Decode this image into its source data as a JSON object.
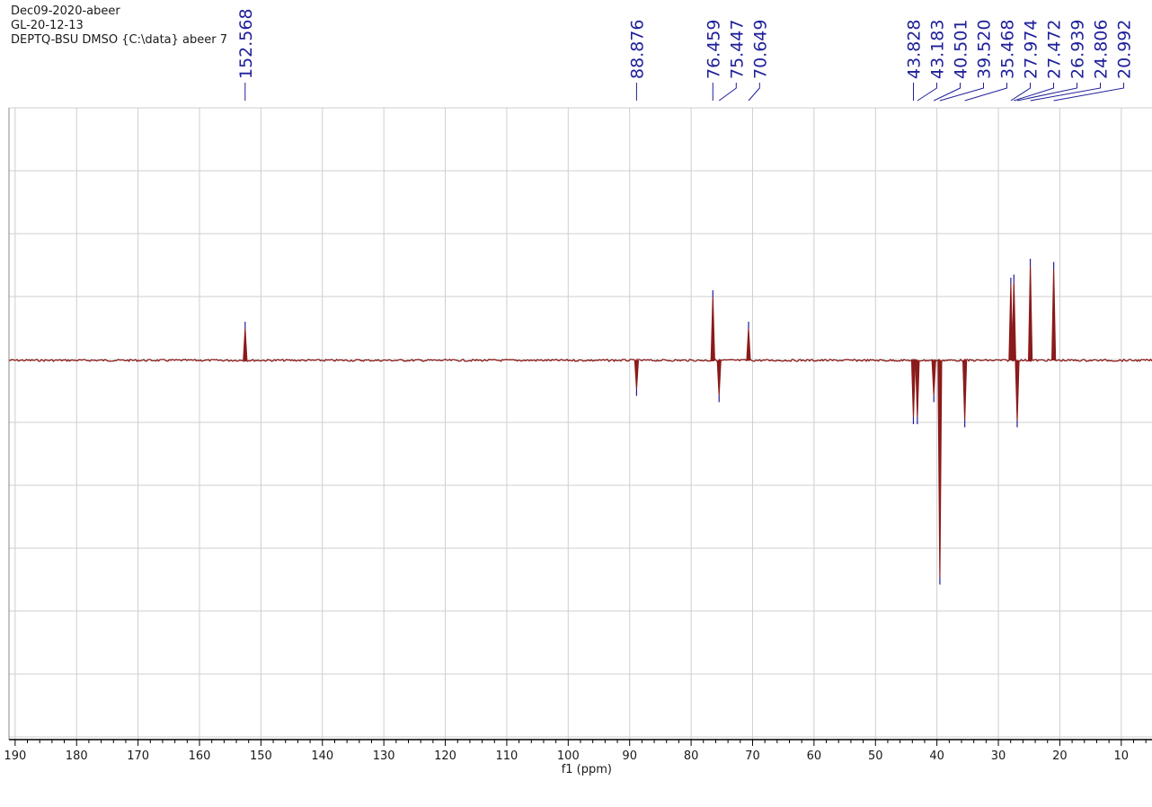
{
  "header": {
    "line1": "Dec09-2020-abeer",
    "line2": "GL-20-12-13",
    "line3": "DEPTQ-BSU DMSO {C:\\data} abeer 7"
  },
  "colors": {
    "spectrum": "#8b1a1a",
    "peak_label": "#1f1f9a",
    "grid": "#cfcfcf",
    "axis": "#000000"
  },
  "chart_data": {
    "type": "line",
    "title": "",
    "xlabel": "f1 (ppm)",
    "ylabel": "",
    "xlim": [
      191,
      5
    ],
    "x_reversed": true,
    "grid": true,
    "x_ticks": [
      190,
      180,
      170,
      160,
      150,
      140,
      130,
      120,
      110,
      100,
      90,
      80,
      70,
      60,
      50,
      40,
      30,
      20,
      10
    ],
    "x_tick_labels": [
      "190",
      "180",
      "170",
      "160",
      "150",
      "140",
      "130",
      "120",
      "110",
      "100",
      "90",
      "80",
      "70",
      "60",
      "50",
      "40",
      "30",
      "20",
      "10"
    ],
    "peak_labels": [
      "152.568",
      "88.876",
      "76.459",
      "75.447",
      "70.649",
      "43.828",
      "43.183",
      "40.501",
      "39.520",
      "35.468",
      "27.974",
      "27.472",
      "26.939",
      "24.806",
      "20.992"
    ],
    "peaks": [
      {
        "ppm": 152.568,
        "intensity": 0.5
      },
      {
        "ppm": 88.876,
        "intensity": -0.45
      },
      {
        "ppm": 76.459,
        "intensity": 1.0
      },
      {
        "ppm": 75.447,
        "intensity": -0.55
      },
      {
        "ppm": 70.649,
        "intensity": 0.5
      },
      {
        "ppm": 43.828,
        "intensity": -0.9
      },
      {
        "ppm": 43.183,
        "intensity": -0.9
      },
      {
        "ppm": 40.501,
        "intensity": -0.55
      },
      {
        "ppm": 39.52,
        "intensity": -3.45
      },
      {
        "ppm": 35.468,
        "intensity": -0.95
      },
      {
        "ppm": 27.974,
        "intensity": 1.2
      },
      {
        "ppm": 27.472,
        "intensity": 1.25
      },
      {
        "ppm": 26.939,
        "intensity": -0.95
      },
      {
        "ppm": 24.806,
        "intensity": 1.5
      },
      {
        "ppm": 20.992,
        "intensity": 1.45
      }
    ]
  }
}
